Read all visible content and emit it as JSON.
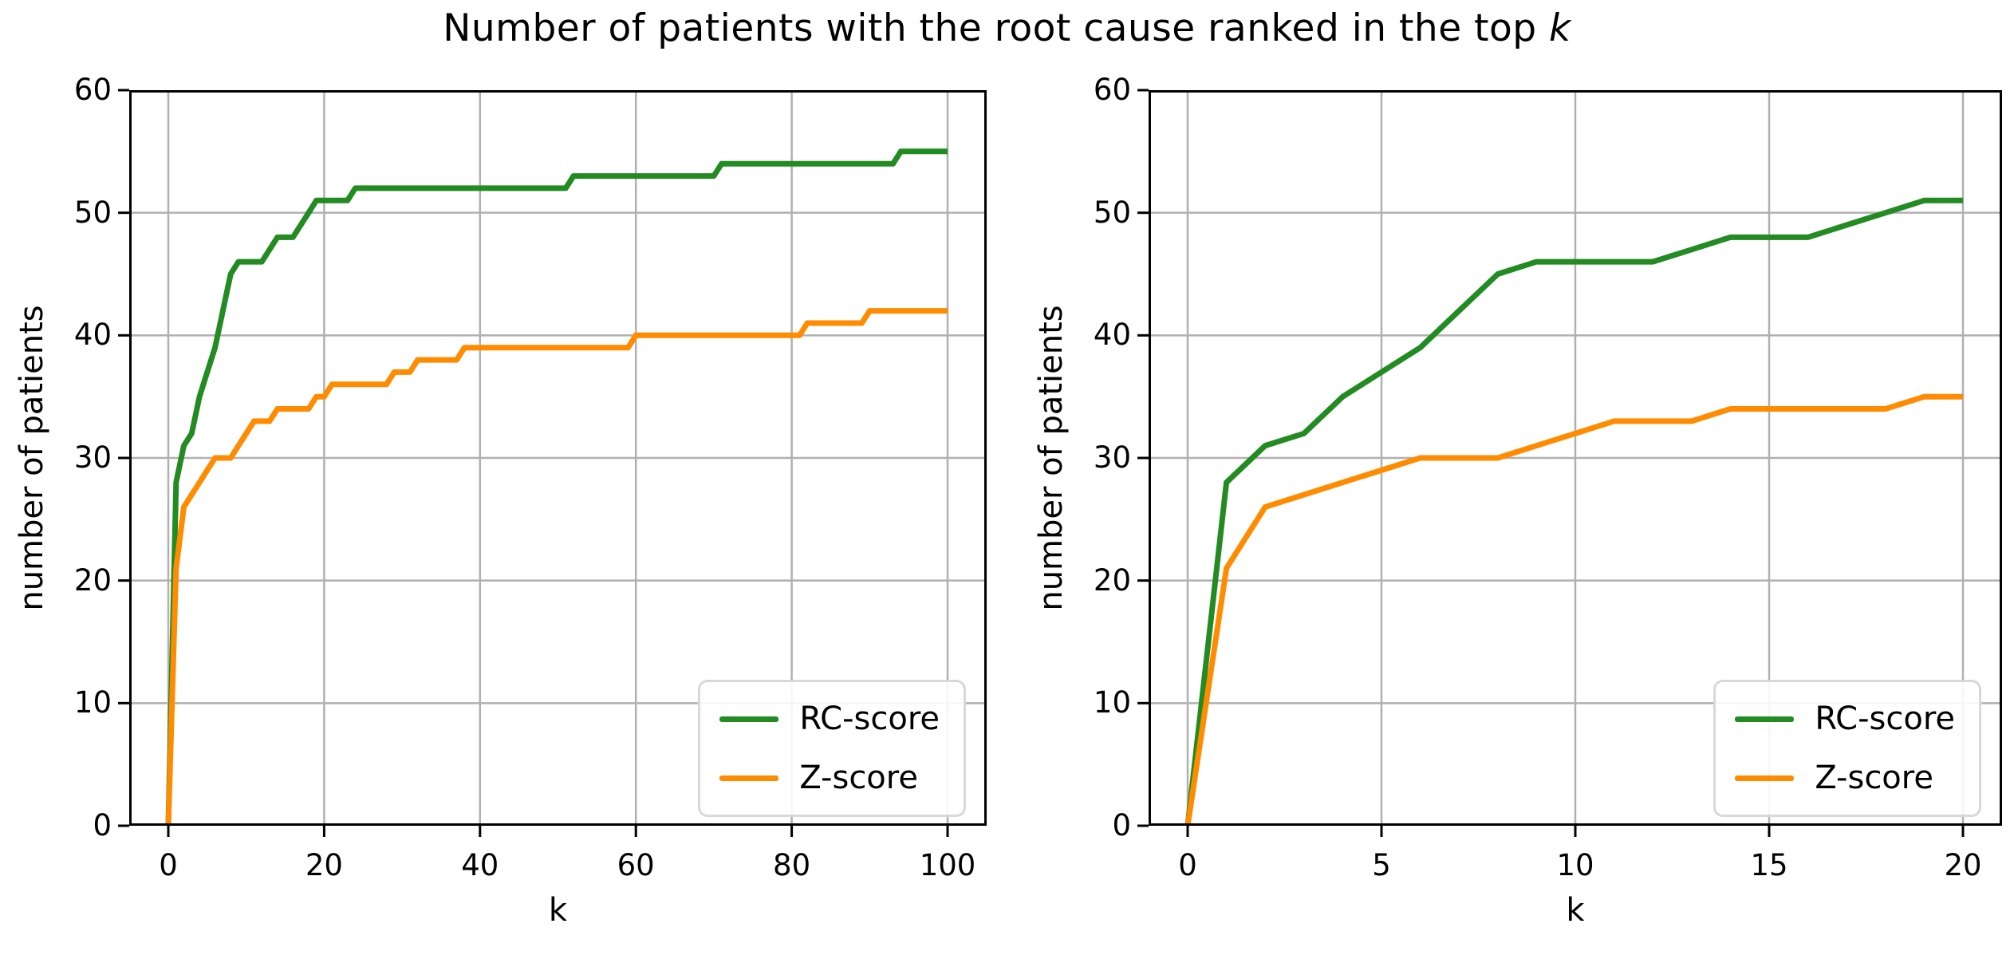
{
  "figure": {
    "title_prefix": "Number of patients with the root cause ranked in the top ",
    "title_italic": "k",
    "background": "#ffffff"
  },
  "colors": {
    "rc_score": "#228B22",
    "z_score": "#FF8C00",
    "grid": "#b0b0b0",
    "spine": "#000000",
    "tick": "#000000",
    "legend_border": "#d8d8d8"
  },
  "legend": {
    "position": "lower right",
    "items": [
      {
        "label": "RC-score",
        "color_key": "rc_score"
      },
      {
        "label": "Z-score",
        "color_key": "z_score"
      }
    ]
  },
  "chart_data": [
    {
      "type": "line",
      "title": "",
      "xlabel": "k",
      "ylabel": "number of patients",
      "xlim": [
        0,
        100
      ],
      "ylim": [
        0,
        60
      ],
      "xticks": [
        0,
        20,
        40,
        60,
        80,
        100
      ],
      "yticks": [
        0,
        10,
        20,
        30,
        40,
        50,
        60
      ],
      "grid": true,
      "legend_position": "lower right",
      "series": [
        {
          "name": "RC-score",
          "color": "#228B22",
          "points": [
            [
              0,
              0
            ],
            [
              1,
              28
            ],
            [
              2,
              31
            ],
            [
              3,
              32
            ],
            [
              4,
              35
            ],
            [
              5,
              37
            ],
            [
              6,
              39
            ],
            [
              7,
              42
            ],
            [
              8,
              45
            ],
            [
              9,
              46
            ],
            [
              12,
              46
            ],
            [
              13,
              47
            ],
            [
              14,
              48
            ],
            [
              16,
              48
            ],
            [
              17,
              49
            ],
            [
              18,
              50
            ],
            [
              19,
              51
            ],
            [
              23,
              51
            ],
            [
              24,
              52
            ],
            [
              51,
              52
            ],
            [
              52,
              53
            ],
            [
              70,
              53
            ],
            [
              71,
              54
            ],
            [
              93,
              54
            ],
            [
              94,
              55
            ],
            [
              100,
              55
            ]
          ]
        },
        {
          "name": "Z-score",
          "color": "#FF8C00",
          "points": [
            [
              0,
              0
            ],
            [
              1,
              21
            ],
            [
              2,
              26
            ],
            [
              3,
              27
            ],
            [
              4,
              28
            ],
            [
              5,
              29
            ],
            [
              6,
              30
            ],
            [
              8,
              30
            ],
            [
              9,
              31
            ],
            [
              10,
              32
            ],
            [
              11,
              33
            ],
            [
              13,
              33
            ],
            [
              14,
              34
            ],
            [
              18,
              34
            ],
            [
              19,
              35
            ],
            [
              20,
              35
            ],
            [
              21,
              36
            ],
            [
              28,
              36
            ],
            [
              29,
              37
            ],
            [
              31,
              37
            ],
            [
              32,
              38
            ],
            [
              37,
              38
            ],
            [
              38,
              39
            ],
            [
              59,
              39
            ],
            [
              60,
              40
            ],
            [
              81,
              40
            ],
            [
              82,
              41
            ],
            [
              89,
              41
            ],
            [
              90,
              42
            ],
            [
              100,
              42
            ]
          ]
        }
      ]
    },
    {
      "type": "line",
      "title": "",
      "xlabel": "k",
      "ylabel": "number of patients",
      "xlim": [
        0,
        20
      ],
      "ylim": [
        0,
        60
      ],
      "xticks": [
        0,
        5,
        10,
        15,
        20
      ],
      "yticks": [
        0,
        10,
        20,
        30,
        40,
        50,
        60
      ],
      "grid": true,
      "legend_position": "lower right",
      "series": [
        {
          "name": "RC-score",
          "color": "#228B22",
          "points": [
            [
              0,
              0
            ],
            [
              1,
              28
            ],
            [
              2,
              31
            ],
            [
              3,
              32
            ],
            [
              4,
              35
            ],
            [
              5,
              37
            ],
            [
              6,
              39
            ],
            [
              7,
              42
            ],
            [
              8,
              45
            ],
            [
              9,
              46
            ],
            [
              12,
              46
            ],
            [
              13,
              47
            ],
            [
              14,
              48
            ],
            [
              16,
              48
            ],
            [
              17,
              49
            ],
            [
              18,
              50
            ],
            [
              19,
              51
            ],
            [
              20,
              51
            ]
          ]
        },
        {
          "name": "Z-score",
          "color": "#FF8C00",
          "points": [
            [
              0,
              0
            ],
            [
              1,
              21
            ],
            [
              2,
              26
            ],
            [
              3,
              27
            ],
            [
              4,
              28
            ],
            [
              5,
              29
            ],
            [
              6,
              30
            ],
            [
              8,
              30
            ],
            [
              9,
              31
            ],
            [
              10,
              32
            ],
            [
              11,
              33
            ],
            [
              13,
              33
            ],
            [
              14,
              34
            ],
            [
              18,
              34
            ],
            [
              19,
              35
            ],
            [
              20,
              35
            ]
          ]
        }
      ]
    }
  ]
}
